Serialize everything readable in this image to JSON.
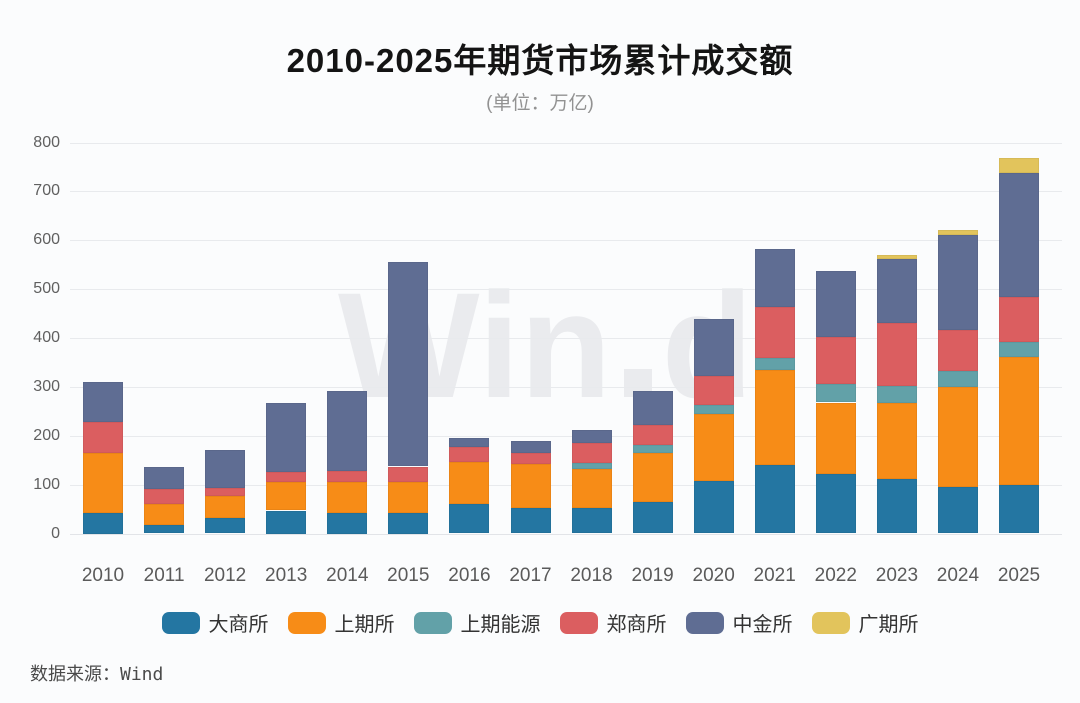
{
  "title": "2010-2025年期货市场累计成交额",
  "subtitle": "(单位：万亿)",
  "source": {
    "label": "数据来源：",
    "value": "Wind"
  },
  "watermark": {
    "part1": "Win",
    "part2": "d",
    "dot_shape": "square"
  },
  "colors": {
    "background": "#fbfcfd",
    "gridline": "#e8eaed",
    "title_text": "#141414",
    "subtitle_text": "#929292",
    "axis_text": "#5a5a5a",
    "legend_text": "#333333",
    "watermark_text": "#eaebee"
  },
  "chart_data": {
    "type": "bar",
    "stacked": true,
    "unit": "万亿",
    "title": "2010-2025年期货市场累计成交额",
    "xlabel": "",
    "ylabel": "",
    "ylim": [
      0,
      800
    ],
    "yticks": [
      0,
      100,
      200,
      300,
      400,
      500,
      600,
      700,
      800
    ],
    "grid": true,
    "legend_position": "bottom",
    "categories": [
      "2010",
      "2011",
      "2012",
      "2013",
      "2014",
      "2015",
      "2016",
      "2017",
      "2018",
      "2019",
      "2020",
      "2021",
      "2022",
      "2023",
      "2024",
      "2025"
    ],
    "series": [
      {
        "name": "大商所",
        "color": "#2476a2",
        "values": [
          42,
          17,
          31,
          47,
          42,
          42,
          61,
          52,
          52,
          65,
          107,
          140,
          122,
          111,
          95,
          100
        ]
      },
      {
        "name": "上期所",
        "color": "#f78c17",
        "values": [
          123,
          43,
          46,
          58,
          63,
          64,
          85,
          90,
          80,
          100,
          138,
          194,
          146,
          156,
          204,
          262
        ]
      },
      {
        "name": "上期能源",
        "color": "#62a1a8",
        "values": [
          0,
          0,
          0,
          0,
          0,
          0,
          0,
          0,
          13,
          16,
          17,
          25,
          38,
          34,
          33,
          29
        ]
      },
      {
        "name": "郑商所",
        "color": "#db5e60",
        "values": [
          63,
          32,
          16,
          21,
          23,
          31,
          31,
          22,
          41,
          41,
          60,
          104,
          97,
          129,
          85,
          92
        ]
      },
      {
        "name": "中金所",
        "color": "#5f6d93",
        "values": [
          82,
          44,
          78,
          141,
          164,
          418,
          18,
          25,
          26,
          69,
          117,
          120,
          135,
          131,
          194,
          254
        ]
      },
      {
        "name": "广期所",
        "color": "#e2c45c",
        "values": [
          0,
          0,
          0,
          0,
          0,
          0,
          0,
          0,
          0,
          0,
          0,
          0,
          0,
          9,
          11,
          31
        ]
      }
    ],
    "totals": [
      310,
      136,
      171,
      267,
      292,
      555,
      195,
      189,
      212,
      291,
      439,
      583,
      538,
      570,
      622,
      768
    ]
  }
}
